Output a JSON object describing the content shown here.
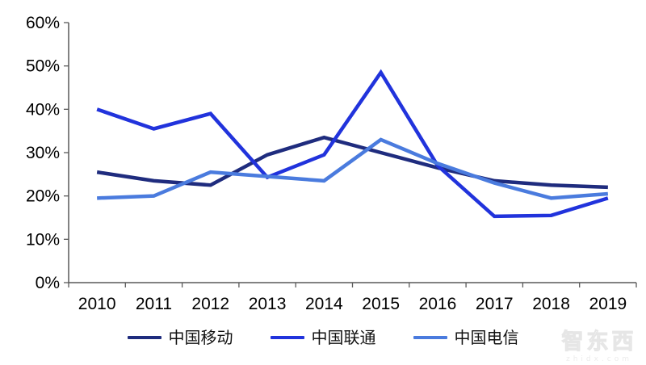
{
  "chart_data": {
    "type": "line",
    "title": "",
    "xlabel": "",
    "ylabel": "",
    "categories": [
      "2010",
      "2011",
      "2012",
      "2013",
      "2014",
      "2015",
      "2016",
      "2017",
      "2018",
      "2019"
    ],
    "series": [
      {
        "name": "中国移动",
        "color": "#1F2C7E",
        "values": [
          25.5,
          23.5,
          22.5,
          29.5,
          33.5,
          30,
          26.5,
          23.5,
          22.5,
          22
        ]
      },
      {
        "name": "中国联通",
        "color": "#2133DC",
        "values": [
          40,
          35.5,
          39,
          24.3,
          29.5,
          48.5,
          27,
          15.3,
          15.5,
          19.5
        ]
      },
      {
        "name": "中国电信",
        "color": "#4A7BDE",
        "values": [
          19.5,
          20,
          25.5,
          24.5,
          23.5,
          33,
          27.5,
          23,
          19.5,
          20.5
        ]
      }
    ],
    "ylim": [
      0,
      60
    ],
    "yticks": [
      0,
      10,
      20,
      30,
      40,
      50,
      60
    ],
    "ytick_labels": [
      "0%",
      "10%",
      "20%",
      "30%",
      "40%",
      "50%",
      "60%"
    ],
    "grid": false,
    "legend_position": "bottom"
  },
  "colors": {
    "axis_line": "#595959",
    "tick": "#595959",
    "label_text": "#000000"
  },
  "watermark": {
    "logo_text": "智东西",
    "url_text": "zhidx.com"
  }
}
